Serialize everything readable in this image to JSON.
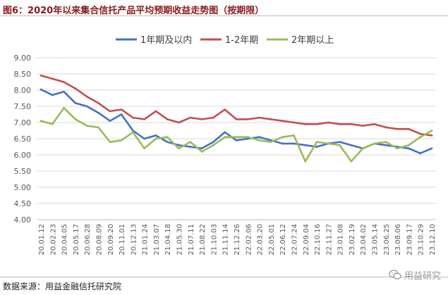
{
  "figure": {
    "title": "图6：2020年以来集合信托产品平均预期收益走势图（按期限）",
    "source": "数据来源：用益金融信托研究院",
    "watermark": "用益研究",
    "watermark_icon": "wechat-icon"
  },
  "chart_data": {
    "type": "line",
    "title": "",
    "xlabel": "",
    "ylabel": "",
    "ylim": [
      4.0,
      9.0
    ],
    "yticks": [
      "9.00",
      "8.50",
      "8.00",
      "7.50",
      "7.00",
      "6.50",
      "6.00",
      "5.50",
      "5.00",
      "4.50",
      "4.00"
    ],
    "grid": "horizontal",
    "legend_position": "top",
    "categories": [
      "20.01.12",
      "20.02.23",
      "20.04.05",
      "20.05.17",
      "20.06.28",
      "20.08.09",
      "20.09.20",
      "20.11.01",
      "20.12.13",
      "21.01.24",
      "21.03.07",
      "21.04.18",
      "21.05.30",
      "21.07.11",
      "21.08.22",
      "21.10.03",
      "21.11.14",
      "21.12.26",
      "22.02.06",
      "22.03.20",
      "22.05.01",
      "22.06.12",
      "22.07.24",
      "22.09.04",
      "22.10.16",
      "22.11.27",
      "23.01.08",
      "23.02.19",
      "23.04.02",
      "23.05.14",
      "23.06.25",
      "23.08.06",
      "23.09.17",
      "23.10.29",
      "23.12.10"
    ],
    "tick_labels": [
      "20.01.12",
      "20.02.23",
      "20.04.05",
      "20.05.17",
      "20.06.28",
      "20.08.09",
      "20.09.20",
      "20.11.01",
      "20.12.13",
      "21.01.24",
      "21.03.07",
      "21.04.18",
      "21.05.30",
      "21.07.11",
      "21.08.22",
      "21.10.03",
      "21.11.14",
      "21.12.26",
      "22.02.06",
      "22.03.20",
      "22.05.01",
      "22.06.12",
      "22.07.24",
      "22.09.04",
      "22.10.16",
      "22.11.27",
      "23.01.08",
      "23.02.19",
      "23.04.02",
      "23.05.14",
      "23.06.25",
      "23.08.06",
      "23.09.17",
      "23.10.29",
      "23.12.10"
    ],
    "series": [
      {
        "name": "1年期及以内",
        "color": "#4472c4",
        "values": [
          8.02,
          7.85,
          7.95,
          7.6,
          7.5,
          7.3,
          7.05,
          7.25,
          6.75,
          6.5,
          6.6,
          6.4,
          6.3,
          6.25,
          6.2,
          6.4,
          6.7,
          6.45,
          6.5,
          6.55,
          6.45,
          6.35,
          6.35,
          6.3,
          6.25,
          6.35,
          6.4,
          6.3,
          6.2,
          6.35,
          6.3,
          6.25,
          6.2,
          6.05,
          6.2
        ]
      },
      {
        "name": "1-2年期",
        "color": "#c0504d",
        "values": [
          8.45,
          8.35,
          8.25,
          8.05,
          7.8,
          7.6,
          7.35,
          7.4,
          7.15,
          7.1,
          7.35,
          7.1,
          7.0,
          7.15,
          7.1,
          7.15,
          7.4,
          7.1,
          7.1,
          7.15,
          7.1,
          7.05,
          7.0,
          6.95,
          6.95,
          7.0,
          6.95,
          6.95,
          6.9,
          6.95,
          6.85,
          6.8,
          6.8,
          6.65,
          6.6
        ]
      },
      {
        "name": "2年期以上",
        "color": "#9bbb59",
        "values": [
          7.05,
          6.95,
          7.45,
          7.1,
          6.9,
          6.85,
          6.4,
          6.45,
          6.7,
          6.2,
          6.5,
          6.55,
          6.2,
          6.4,
          6.1,
          6.3,
          6.55,
          6.55,
          6.55,
          6.45,
          6.4,
          6.55,
          6.6,
          5.8,
          6.4,
          6.35,
          6.3,
          5.8,
          6.2,
          6.35,
          6.4,
          6.2,
          6.3,
          6.55,
          6.75
        ]
      }
    ]
  }
}
